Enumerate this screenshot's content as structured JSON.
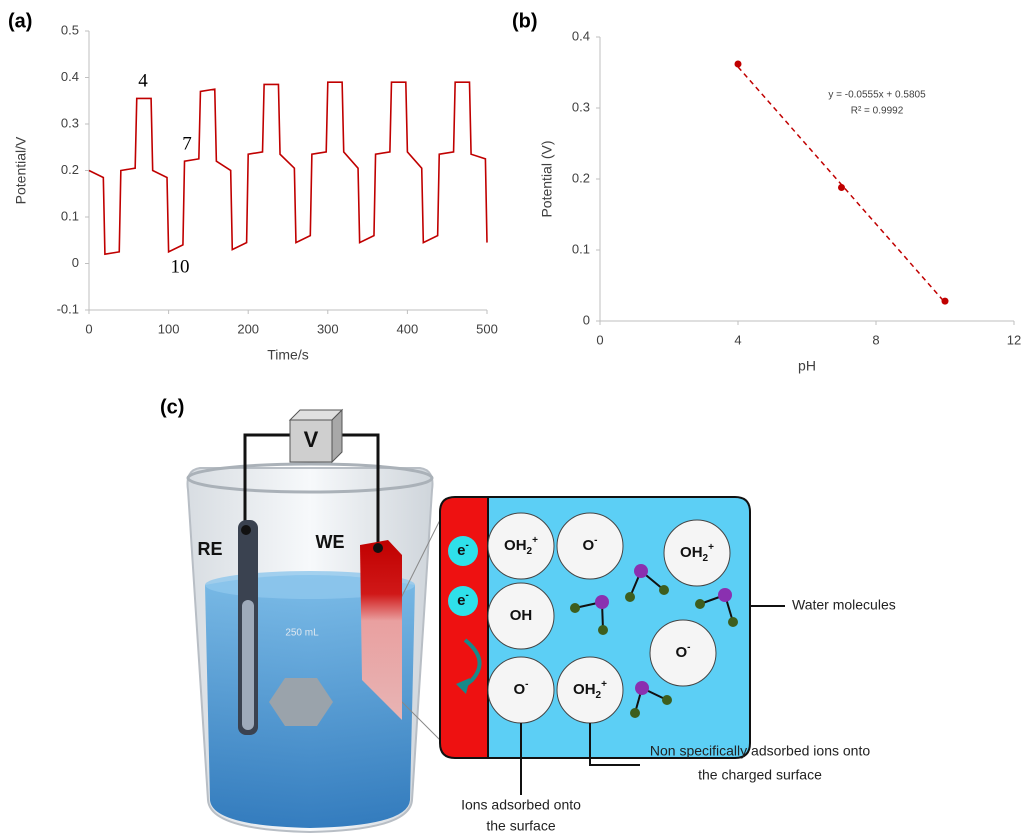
{
  "chart_data": [
    {
      "type": "line",
      "panel": "(a)",
      "xlabel": "Time/s",
      "ylabel": "Potential/V",
      "x": [
        0,
        18,
        20,
        38,
        40,
        58,
        60,
        78,
        80,
        98,
        100,
        118,
        120,
        138,
        140,
        158,
        160,
        178,
        180,
        198,
        200,
        218,
        220,
        238,
        240,
        258,
        260,
        278,
        280,
        298,
        300,
        318,
        320,
        338,
        340,
        358,
        360,
        378,
        380,
        398,
        400,
        418,
        420,
        438,
        440,
        458,
        460,
        478,
        480,
        498,
        500
      ],
      "series": [
        {
          "color": "#c00000",
          "values": [
            0.2,
            0.185,
            0.02,
            0.025,
            0.2,
            0.205,
            0.355,
            0.355,
            0.2,
            0.185,
            0.025,
            0.04,
            0.22,
            0.225,
            0.37,
            0.375,
            0.22,
            0.2,
            0.03,
            0.045,
            0.235,
            0.24,
            0.385,
            0.385,
            0.235,
            0.205,
            0.045,
            0.06,
            0.235,
            0.24,
            0.39,
            0.39,
            0.24,
            0.205,
            0.045,
            0.06,
            0.235,
            0.24,
            0.39,
            0.39,
            0.24,
            0.205,
            0.045,
            0.06,
            0.235,
            0.24,
            0.39,
            0.39,
            0.235,
            0.225,
            0.045
          ]
        }
      ],
      "annotations": [
        "4",
        "7",
        "10"
      ],
      "xlim": [
        0,
        500
      ],
      "xticks": [
        0,
        100,
        200,
        300,
        400,
        500
      ],
      "ylim": [
        -0.1,
        0.5
      ],
      "yticks": [
        -0.1,
        0,
        0.1,
        0.2,
        0.3,
        0.4,
        0.5
      ]
    },
    {
      "type": "scatter",
      "panel": "(b)",
      "xlabel": "pH",
      "ylabel": "Potential (V)",
      "x": [
        4,
        7,
        10
      ],
      "values": [
        0.362,
        0.188,
        0.028
      ],
      "color": "#c00000",
      "trendline": {
        "x": [
          4,
          10
        ],
        "values": [
          0.358,
          0.026
        ],
        "color": "#c00000"
      },
      "annotations": [
        "y = -0.0555x + 0.5805",
        "R² = 0.9992"
      ],
      "xlim": [
        0,
        12
      ],
      "xticks": [
        0,
        4,
        8,
        12
      ],
      "ylim": [
        0,
        0.4
      ],
      "yticks": [
        0,
        0.1,
        0.2,
        0.3,
        0.4
      ]
    }
  ],
  "diagram": {
    "panel": "(c)",
    "meter": "V",
    "electrodes": [
      "RE",
      "WE"
    ],
    "beaker_volume": "250 mL",
    "electrons": [
      {
        "base": "e",
        "sup": "-"
      },
      {
        "base": "e",
        "sup": "-"
      }
    ],
    "species": [
      {
        "base": "OH",
        "sub": "2",
        "sup": "+"
      },
      {
        "base": "O",
        "sup": "-"
      },
      {
        "base": "OH"
      },
      {
        "base": "O",
        "sup": "-"
      },
      {
        "base": "OH",
        "sub": "2",
        "sup": "+"
      },
      {
        "base": "OH",
        "sub": "2",
        "sup": "+"
      },
      {
        "base": "O",
        "sup": "-"
      }
    ],
    "callouts": {
      "water": "Water molecules",
      "non_specific": [
        "Non specifically adsorbed ions onto",
        "the charged surface"
      ],
      "adsorbed": [
        "Ions adsorbed onto",
        "the surface"
      ]
    }
  }
}
